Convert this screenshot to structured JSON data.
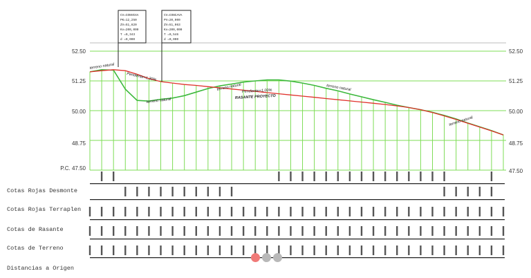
{
  "elevation_ticks": [
    "52.50",
    "51.25",
    "50.00",
    "48.75",
    "P.C. 47.50",
    "47.50"
  ],
  "row_labels": [
    "Cotas Rojas Desmonte",
    "Cotas Rojas Terraplen",
    "Cotas de Rasante",
    "Cotas de Terreno",
    "Distancias a Origen"
  ],
  "annotations": [
    "terreno natural",
    "Pendiente=1,30%",
    "terreno natural",
    "terreno natural",
    "Pendiente=1,00%",
    "RASANTE PROYECTO",
    "terreno natural",
    "terreno natural"
  ],
  "curve_boxes": [
    [
      "CV=CONVEXA",
      "PK=12,250",
      "ZV=51,820",
      "Kv=200,000",
      "T =0,343",
      "d =0,000"
    ],
    [
      "CV=CONCAVA",
      "PV=20,000",
      "ZV=51,063",
      "Kv=200,000",
      "T =0,546",
      "d =0,000"
    ]
  ],
  "pager": {
    "count": 3,
    "active": 0
  },
  "colors": {
    "grid": "#7ddc55",
    "terrain": "#3cb83c",
    "grade_line": "#e0302a",
    "frame": "#222222",
    "pager_active": "#f07a78",
    "pager_inactive": "#b8b8b8"
  },
  "chart_data": {
    "type": "line",
    "title": "",
    "xlabel": "Distancias a Origen",
    "ylabel": "",
    "ylim": [
      47.5,
      52.5
    ],
    "yticks": [
      47.5,
      48.75,
      50.0,
      51.25,
      52.5
    ],
    "x": [
      0,
      5,
      10,
      15,
      20,
      25,
      30,
      35,
      40,
      45,
      50,
      55,
      60,
      65,
      70,
      75,
      80,
      85,
      90,
      95,
      100,
      105,
      110,
      115,
      120,
      125,
      130,
      135,
      140,
      145,
      150,
      155,
      160,
      165,
      170,
      175
    ],
    "series": [
      {
        "name": "RASANTE PROYECTO",
        "values": [
          51.63,
          51.68,
          51.72,
          51.68,
          51.53,
          51.35,
          51.22,
          51.16,
          51.1,
          51.06,
          51.01,
          50.96,
          50.91,
          50.86,
          50.81,
          50.76,
          50.71,
          50.66,
          50.61,
          50.56,
          50.51,
          50.46,
          50.41,
          50.36,
          50.31,
          50.26,
          50.2,
          50.13,
          50.04,
          49.92,
          49.78,
          49.63,
          49.47,
          49.31,
          49.15,
          48.98
        ]
      },
      {
        "name": "terreno natural",
        "values": [
          51.63,
          51.72,
          51.7,
          50.9,
          50.43,
          50.4,
          50.48,
          50.53,
          50.63,
          50.78,
          50.93,
          51.04,
          51.12,
          51.2,
          51.25,
          51.29,
          51.29,
          51.24,
          51.16,
          51.06,
          50.94,
          50.83,
          50.7,
          50.58,
          50.46,
          50.35,
          50.23,
          50.13,
          50.04,
          49.93,
          49.8,
          49.65,
          49.48,
          49.32,
          49.16,
          48.98
        ]
      }
    ],
    "grid": true
  }
}
